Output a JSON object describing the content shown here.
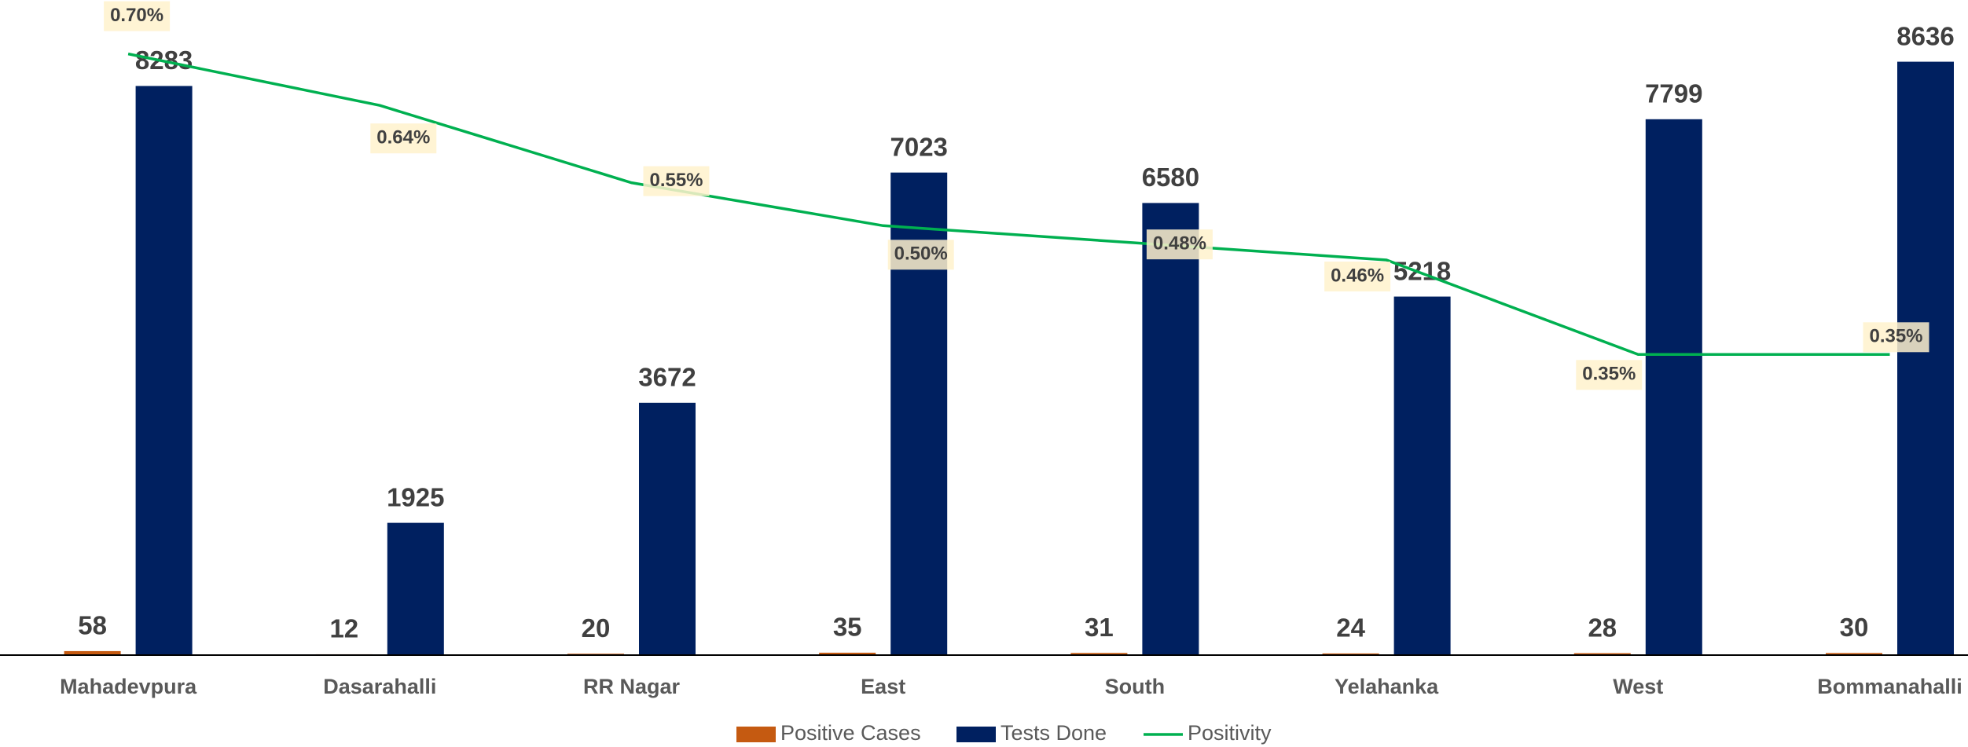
{
  "chart_data": {
    "type": "bar",
    "categories": [
      "Mahadevpura",
      "Dasarahalli",
      "RR Nagar",
      "East",
      "South",
      "Yelahanka",
      "West",
      "Bommanahalli"
    ],
    "series": [
      {
        "name": "Positive Cases",
        "color": "#c55a11",
        "values": [
          58,
          12,
          20,
          35,
          31,
          24,
          28,
          30
        ]
      },
      {
        "name": "Tests Done",
        "color": "#002060",
        "values": [
          8283,
          1925,
          3672,
          7023,
          6580,
          5218,
          7799,
          8636
        ]
      },
      {
        "name": "Positivity",
        "type": "line",
        "axis": "y2",
        "color": "#00b050",
        "values": [
          0.7,
          0.64,
          0.55,
          0.5,
          0.48,
          0.46,
          0.35,
          0.35
        ],
        "value_labels": [
          "0.70%",
          "0.64%",
          "0.55%",
          "0.50%",
          "0.48%",
          "0.46%",
          "0.35%",
          "0.35%"
        ]
      }
    ],
    "ylim": [
      0,
      9500
    ],
    "y2lim": [
      0,
      0.76
    ],
    "legend": "bottom"
  }
}
